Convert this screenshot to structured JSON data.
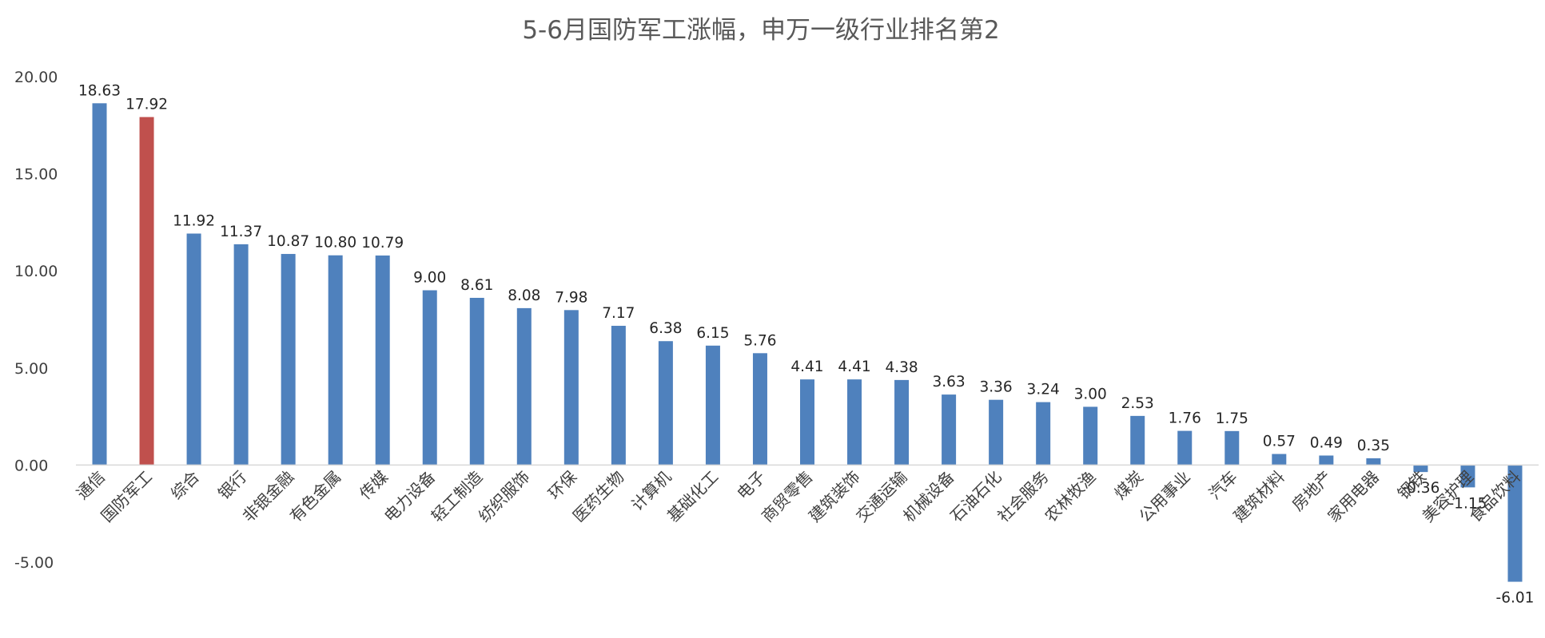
{
  "chart_data": {
    "type": "bar",
    "title": "5-6月国防军工涨幅，申万一级行业排名第2",
    "xlabel": "",
    "ylabel": "",
    "ylim": [
      -5,
      20
    ],
    "y_ticks": [
      "20.00",
      "15.00",
      "10.00",
      "5.00",
      "0.00",
      "-5.00"
    ],
    "grid": false,
    "legend": "none",
    "colors": {
      "default": "#4f81bd",
      "highlight": "#c0504d",
      "axis": "#d9d9d9"
    },
    "highlight_category": "国防军工",
    "categories": [
      "通信",
      "国防军工",
      "综合",
      "银行",
      "非银金融",
      "有色金属",
      "传媒",
      "电力设备",
      "轻工制造",
      "纺织服饰",
      "环保",
      "医药生物",
      "计算机",
      "基础化工",
      "电子",
      "商贸零售",
      "建筑装饰",
      "交通运输",
      "机械设备",
      "石油石化",
      "社会服务",
      "农林牧渔",
      "煤炭",
      "公用事业",
      "汽车",
      "建筑材料",
      "房地产",
      "家用电器",
      "钢铁",
      "美容护理",
      "食品饮料"
    ],
    "values": [
      18.63,
      17.92,
      11.92,
      11.37,
      10.87,
      10.8,
      10.79,
      9.0,
      8.61,
      8.08,
      7.98,
      7.17,
      6.38,
      6.15,
      5.76,
      4.41,
      4.41,
      4.38,
      3.63,
      3.36,
      3.24,
      3.0,
      2.53,
      1.76,
      1.75,
      0.57,
      0.49,
      0.35,
      -0.36,
      -1.15,
      -6.01
    ],
    "data_labels": [
      "18.63",
      "17.92",
      "11.92",
      "11.37",
      "10.87",
      "10.80",
      "10.79",
      "9.00",
      "8.61",
      "8.08",
      "7.98",
      "7.17",
      "6.38",
      "6.15",
      "5.76",
      "4.41",
      "4.41",
      "4.38",
      "3.63",
      "3.36",
      "3.24",
      "3.00",
      "2.53",
      "1.76",
      "1.75",
      "0.57",
      "0.49",
      "0.35",
      "-0.36",
      "-1.15",
      "-6.01"
    ]
  }
}
